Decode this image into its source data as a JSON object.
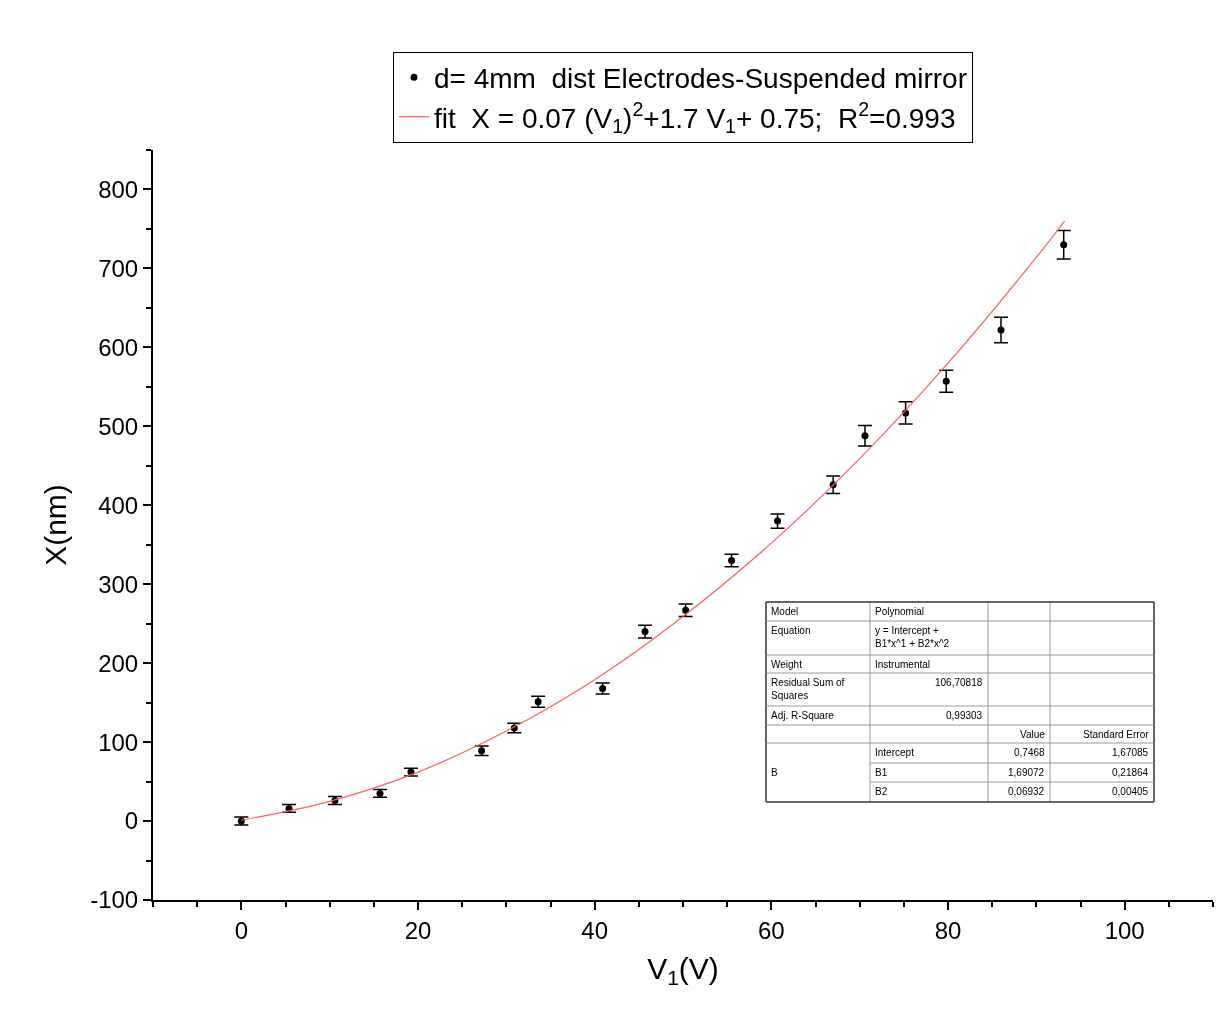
{
  "chart_data": {
    "type": "scatter",
    "xlabel": "V$_{1}$(V)",
    "ylabel": "X(nm)",
    "xlim": [
      -10,
      110
    ],
    "xticks": [
      0,
      20,
      40,
      60,
      80,
      100
    ],
    "ylim": [
      -100,
      850
    ],
    "yticks": [
      -100,
      0,
      100,
      200,
      300,
      400,
      500,
      600,
      700,
      800
    ],
    "legend": "top",
    "marker": "circle",
    "series": [
      {
        "name": "d= 4mm  dist Electrodes-Suspended mirror",
        "color": "#000000",
        "x": [
          0,
          5.4,
          10.6,
          15.7,
          19.2,
          27.2,
          30.9,
          33.6,
          40.9,
          45.7,
          50.3,
          55.5,
          60.7,
          67.0,
          70.6,
          75.2,
          79.8,
          86.0,
          93.1
        ],
        "values": [
          0,
          16,
          26,
          35,
          62,
          89,
          118,
          151,
          168,
          240,
          267,
          330,
          380,
          426,
          488,
          517,
          557,
          622,
          730
        ],
        "errors": [
          5,
          5,
          5,
          5,
          5,
          6,
          6,
          7,
          7,
          8,
          8,
          8,
          9,
          11,
          13,
          14,
          14,
          16,
          18
        ]
      },
      {
        "name": "fit  X = 0.07 (V$_{1}$)$^{2}$+1.7 V$_{1}$+ 0.75;  R$^{2}$=0.993",
        "color": "#ff6060",
        "type": "line",
        "marker": "none",
        "x": [
          0,
          10,
          20,
          30,
          40,
          50,
          60,
          70,
          80,
          90,
          93.2
        ],
        "values": [
          1,
          25,
          62,
          114,
          179,
          259,
          352,
          459,
          580,
          714,
          760
        ]
      }
    ],
    "annotations": [
      "Model",
      "Polynomial",
      "Equation",
      "y = Intercept + B1*x^1 + B2*x^2",
      "Weight",
      "Instrumental",
      "Residual Sum of Squares",
      "106,70818",
      "Adj. R-Square",
      "0,99303",
      "Value",
      "Standard Error",
      "B",
      "Intercept",
      "0,7468",
      "1,67085",
      "B1",
      "1,69072",
      "0,21864",
      "B2",
      "0,06932",
      "0,00405"
    ]
  }
}
